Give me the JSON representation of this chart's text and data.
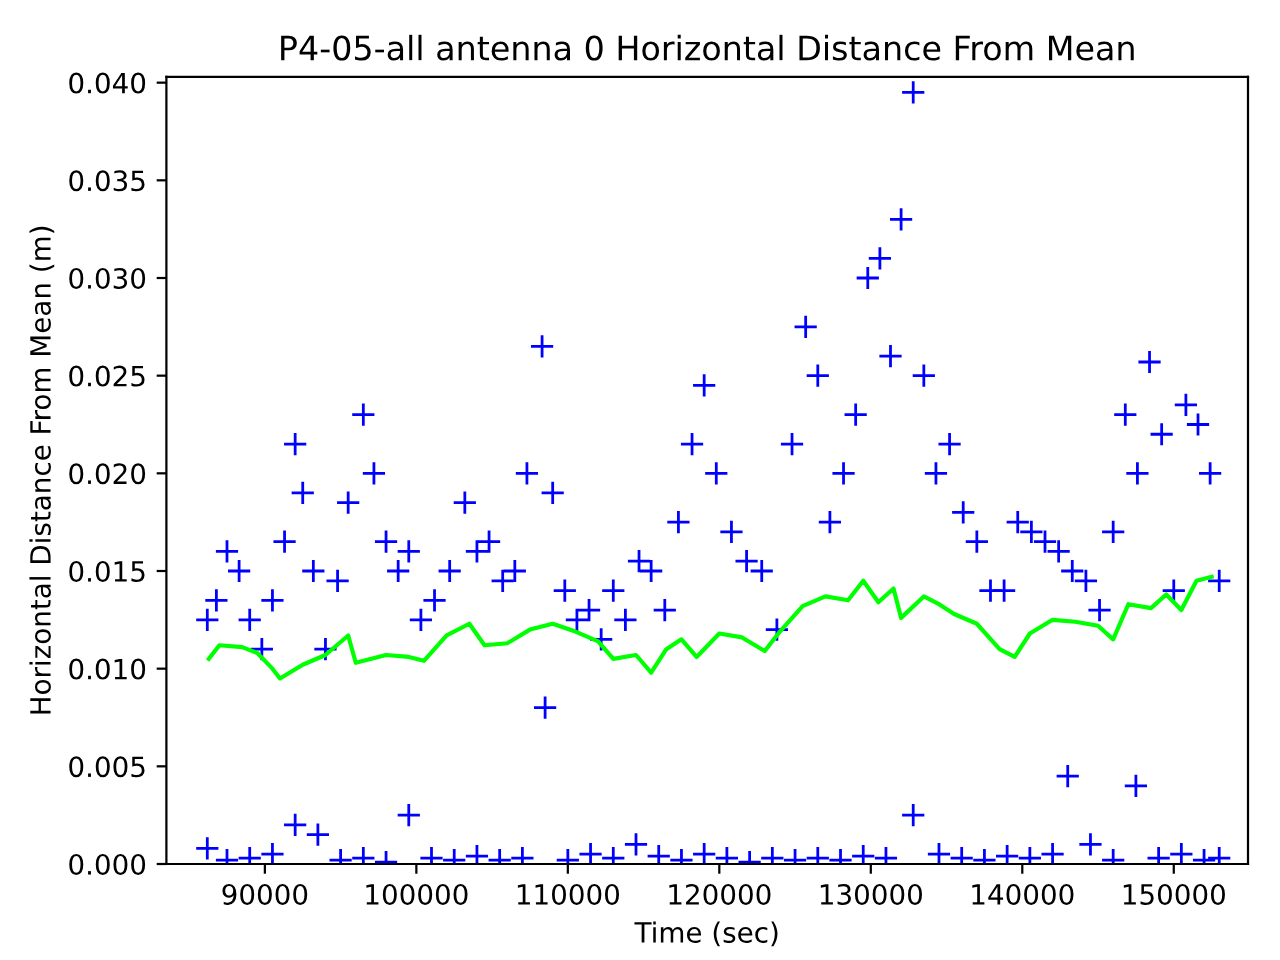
{
  "chart_data": {
    "type": "scatter",
    "title": "P4-05-all antenna 0 Horizontal Distance From Mean",
    "xlabel": "Time (sec)",
    "ylabel": "Horizontal Distance From Mean (m)",
    "xlim": [
      83500,
      154900
    ],
    "ylim": [
      0,
      0.0403
    ],
    "xticks": [
      90000,
      100000,
      110000,
      120000,
      130000,
      140000,
      150000
    ],
    "yticks": [
      {
        "value": 0,
        "label": "0.000"
      },
      0.005,
      {
        "value": 0.01,
        "label": "0.010"
      },
      0.015,
      {
        "value": 0.02,
        "label": "0.020"
      },
      0.025,
      {
        "value": 0.03,
        "label": "0.030"
      },
      0.035,
      {
        "value": 0.04,
        "label": "0.040"
      }
    ],
    "grid": false,
    "series": [
      {
        "marker": "cross",
        "color": "#0000ff",
        "x": [
          86200,
          86800,
          87500,
          88300,
          89000,
          89800,
          90500,
          91300,
          92000,
          92500,
          93200,
          94000,
          94800,
          95500,
          96500,
          97200,
          98000,
          98800,
          99500,
          100300,
          101200,
          102200,
          103200,
          104000,
          104800,
          105700,
          106500,
          107300,
          108300,
          109000,
          109800,
          110600,
          111400,
          112200,
          113000,
          113800,
          114700,
          115500,
          116400,
          117300,
          118200,
          119000,
          119800,
          120800,
          121800,
          122800,
          123800,
          124800,
          125700,
          126500,
          127300,
          128200,
          129000,
          129800,
          130600,
          131300,
          132000,
          132800,
          133500,
          134300,
          135200,
          136100,
          137000,
          137900,
          138800,
          139700,
          140600,
          141500,
          142400,
          143300,
          144200,
          145100,
          146000,
          146800,
          147600,
          148400,
          149200,
          150000,
          150800,
          151600,
          152400,
          153000,
          86200,
          87500,
          89000,
          90500,
          92000,
          93500,
          95000,
          96500,
          98000,
          99500,
          101000,
          102500,
          104000,
          105500,
          107000,
          108500,
          110000,
          111500,
          113000,
          114500,
          116000,
          117500,
          119000,
          120500,
          122000,
          123500,
          125000,
          126500,
          128000,
          129500,
          131000,
          132800,
          134500,
          136000,
          137500,
          139000,
          140500,
          142000,
          143000,
          144500,
          146000,
          147500,
          149000,
          150500,
          152000,
          153000
        ],
        "values": [
          0.0125,
          0.0135,
          0.016,
          0.015,
          0.0125,
          0.011,
          0.0135,
          0.0165,
          0.0215,
          0.019,
          0.015,
          0.011,
          0.0145,
          0.0185,
          0.023,
          0.02,
          0.0165,
          0.015,
          0.016,
          0.0125,
          0.0135,
          0.015,
          0.0185,
          0.016,
          0.0165,
          0.0145,
          0.015,
          0.02,
          0.0265,
          0.019,
          0.014,
          0.0125,
          0.013,
          0.0115,
          0.014,
          0.0125,
          0.0155,
          0.015,
          0.013,
          0.0175,
          0.0215,
          0.0245,
          0.02,
          0.017,
          0.0155,
          0.015,
          0.012,
          0.0215,
          0.0275,
          0.025,
          0.0175,
          0.02,
          0.023,
          0.03,
          0.031,
          0.026,
          0.033,
          0.0395,
          0.025,
          0.02,
          0.0215,
          0.018,
          0.0165,
          0.014,
          0.014,
          0.0175,
          0.017,
          0.0165,
          0.016,
          0.015,
          0.0145,
          0.013,
          0.017,
          0.023,
          0.02,
          0.0257,
          0.022,
          0.014,
          0.0235,
          0.0225,
          0.02,
          0.0145,
          0.0008,
          0.0002,
          0.0003,
          0.0005,
          0.002,
          0.0015,
          0.0002,
          0.0003,
          0.0001,
          0.0025,
          0.0003,
          0.0002,
          0.0004,
          0.0002,
          0.0003,
          0.008,
          0.0002,
          0.0005,
          0.0003,
          0.001,
          0.0004,
          0.0002,
          0.0005,
          0.0003,
          0.0001,
          0.0003,
          0.0002,
          0.0003,
          0.0002,
          0.0004,
          0.0003,
          0.0025,
          0.0005,
          0.0003,
          0.0002,
          0.0004,
          0.0003,
          0.0005,
          0.0045,
          0.001,
          0.0002,
          0.004,
          0.0003,
          0.0005,
          0.0002,
          0.0003
        ]
      },
      {
        "type": "line",
        "marker": "none",
        "color": "#00ff00",
        "x": [
          86300,
          87000,
          88500,
          89500,
          90500,
          91000,
          92500,
          94000,
          95500,
          96000,
          98000,
          99500,
          100500,
          102000,
          103500,
          104500,
          106000,
          107500,
          109000,
          110500,
          112000,
          113000,
          114500,
          115500,
          116500,
          117500,
          118500,
          120000,
          121500,
          123000,
          124000,
          125500,
          127000,
          128500,
          129500,
          130500,
          131500,
          132000,
          133500,
          134500,
          135500,
          137000,
          138500,
          139500,
          140500,
          142000,
          143500,
          145000,
          146000,
          147000,
          148500,
          149500,
          150500,
          151500,
          152500
        ],
        "values": [
          0.0105,
          0.0112,
          0.0111,
          0.0108,
          0.01,
          0.0095,
          0.0102,
          0.0107,
          0.0117,
          0.0103,
          0.0107,
          0.0106,
          0.0104,
          0.0117,
          0.0123,
          0.0112,
          0.0113,
          0.012,
          0.0123,
          0.0119,
          0.0114,
          0.0105,
          0.0107,
          0.0098,
          0.011,
          0.0115,
          0.0106,
          0.0118,
          0.0116,
          0.0109,
          0.0119,
          0.0132,
          0.0137,
          0.0135,
          0.0145,
          0.0134,
          0.0141,
          0.0126,
          0.0137,
          0.0133,
          0.0128,
          0.0123,
          0.011,
          0.0106,
          0.0118,
          0.0125,
          0.0124,
          0.0122,
          0.0115,
          0.0133,
          0.0131,
          0.0138,
          0.013,
          0.0145,
          0.0147
        ]
      }
    ]
  }
}
